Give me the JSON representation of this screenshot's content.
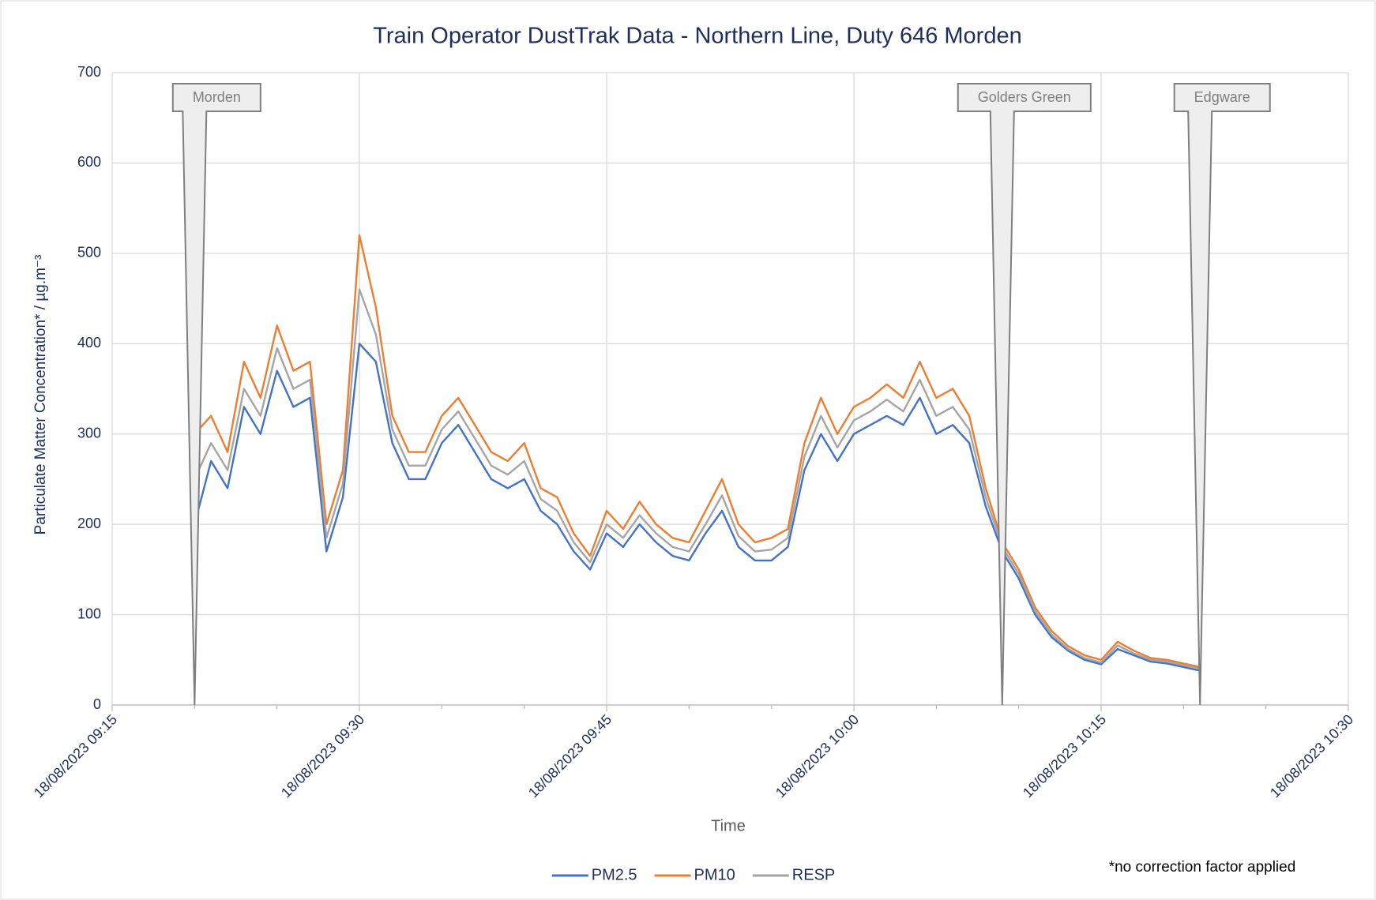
{
  "chart_data": {
    "type": "line",
    "title": "Train Operator DustTrak Data - Northern Line, Duty 646 Morden",
    "xlabel": "Time",
    "ylabel": "Particulate Matter Concentration* / µg.m⁻³",
    "note": "*no correction factor applied",
    "xlim": [
      "18/08/2023 09:15",
      "18/08/2023 10:30"
    ],
    "xticks": [
      "18/08/2023 09:15",
      "18/08/2023 09:30",
      "18/08/2023 09:45",
      "18/08/2023 10:00",
      "18/08/2023 10:15",
      "18/08/2023 10:30"
    ],
    "ylim": [
      0,
      700
    ],
    "yticks": [
      0,
      100,
      200,
      300,
      400,
      500,
      600,
      700
    ],
    "grid": true,
    "legend": "bottom",
    "annotations": [
      {
        "label": "Morden",
        "x": "18/08/2023 09:20"
      },
      {
        "label": "Golders Green",
        "x": "18/08/2023 10:09"
      },
      {
        "label": "Edgware",
        "x": "18/08/2023 10:21"
      }
    ],
    "x": [
      "18/08/2023 09:20",
      "18/08/2023 09:21",
      "18/08/2023 09:22",
      "18/08/2023 09:23",
      "18/08/2023 09:24",
      "18/08/2023 09:25",
      "18/08/2023 09:26",
      "18/08/2023 09:27",
      "18/08/2023 09:28",
      "18/08/2023 09:29",
      "18/08/2023 09:30",
      "18/08/2023 09:31",
      "18/08/2023 09:32",
      "18/08/2023 09:33",
      "18/08/2023 09:34",
      "18/08/2023 09:35",
      "18/08/2023 09:36",
      "18/08/2023 09:37",
      "18/08/2023 09:38",
      "18/08/2023 09:39",
      "18/08/2023 09:40",
      "18/08/2023 09:41",
      "18/08/2023 09:42",
      "18/08/2023 09:43",
      "18/08/2023 09:44",
      "18/08/2023 09:45",
      "18/08/2023 09:46",
      "18/08/2023 09:47",
      "18/08/2023 09:48",
      "18/08/2023 09:49",
      "18/08/2023 09:50",
      "18/08/2023 09:51",
      "18/08/2023 09:52",
      "18/08/2023 09:53",
      "18/08/2023 09:54",
      "18/08/2023 09:55",
      "18/08/2023 09:56",
      "18/08/2023 09:57",
      "18/08/2023 09:58",
      "18/08/2023 09:59",
      "18/08/2023 10:00",
      "18/08/2023 10:01",
      "18/08/2023 10:02",
      "18/08/2023 10:03",
      "18/08/2023 10:04",
      "18/08/2023 10:05",
      "18/08/2023 10:06",
      "18/08/2023 10:07",
      "18/08/2023 10:08",
      "18/08/2023 10:09",
      "18/08/2023 10:10",
      "18/08/2023 10:11",
      "18/08/2023 10:12",
      "18/08/2023 10:13",
      "18/08/2023 10:14",
      "18/08/2023 10:15",
      "18/08/2023 10:16",
      "18/08/2023 10:17",
      "18/08/2023 10:18",
      "18/08/2023 10:19",
      "18/08/2023 10:20",
      "18/08/2023 10:21"
    ],
    "series": [
      {
        "name": "PM2.5",
        "color": "#4472c4",
        "values": [
          200,
          270,
          240,
          330,
          300,
          370,
          330,
          340,
          170,
          230,
          400,
          380,
          290,
          250,
          250,
          290,
          310,
          280,
          250,
          240,
          250,
          215,
          200,
          170,
          150,
          190,
          175,
          200,
          180,
          165,
          160,
          190,
          215,
          175,
          160,
          160,
          175,
          260,
          300,
          270,
          300,
          310,
          320,
          310,
          340,
          300,
          310,
          290,
          220,
          170,
          140,
          100,
          75,
          60,
          50,
          45,
          62,
          55,
          48,
          46,
          42,
          38
        ]
      },
      {
        "name": "PM10",
        "color": "#ed7d31",
        "values": [
          300,
          320,
          280,
          380,
          340,
          420,
          370,
          380,
          200,
          260,
          520,
          440,
          320,
          280,
          280,
          320,
          340,
          310,
          280,
          270,
          290,
          240,
          230,
          190,
          165,
          215,
          195,
          225,
          200,
          185,
          180,
          215,
          250,
          200,
          180,
          185,
          195,
          290,
          340,
          300,
          330,
          340,
          355,
          340,
          380,
          340,
          350,
          320,
          240,
          180,
          150,
          108,
          82,
          65,
          55,
          50,
          70,
          60,
          52,
          50,
          46,
          42
        ]
      },
      {
        "name": "RESP",
        "color": "#a5a5a5",
        "values": [
          250,
          290,
          260,
          350,
          320,
          395,
          350,
          360,
          185,
          245,
          460,
          410,
          305,
          265,
          265,
          305,
          325,
          295,
          265,
          255,
          270,
          228,
          215,
          180,
          158,
          200,
          185,
          210,
          190,
          175,
          170,
          200,
          232,
          187,
          170,
          172,
          185,
          275,
          320,
          285,
          315,
          325,
          338,
          325,
          360,
          320,
          330,
          305,
          230,
          175,
          145,
          104,
          78,
          62,
          52,
          47,
          66,
          57,
          50,
          48,
          44,
          40
        ]
      }
    ]
  }
}
